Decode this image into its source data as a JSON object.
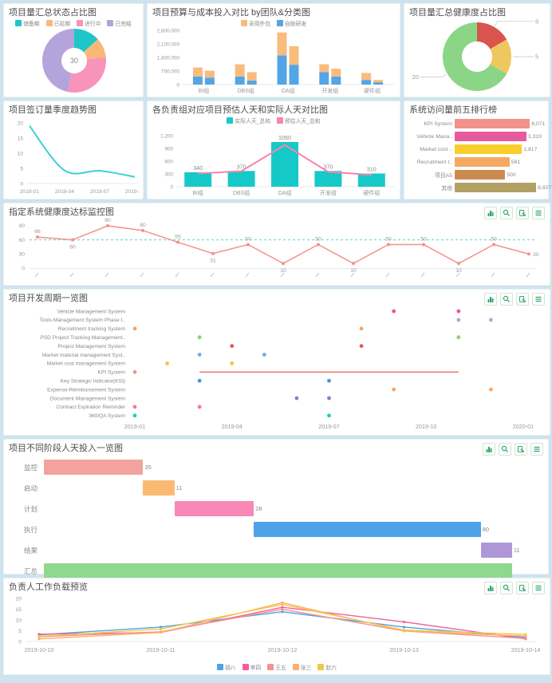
{
  "toolbar": {
    "icons": [
      "excel-export-icon",
      "zoom-icon",
      "download-icon",
      "menu-icon"
    ],
    "icon_color": "#34a46c"
  },
  "chart_data": [
    {
      "id": "status_donut",
      "type": "pie",
      "title": "项目量汇总状态占比图",
      "legend": [
        "储备期",
        "已延期",
        "进行中",
        "已完结"
      ],
      "colors": [
        "#1fc6c8",
        "#f9b877",
        "#f893ba",
        "#b5a4db"
      ],
      "values": [
        4,
        3,
        9,
        14
      ],
      "center_label": "30"
    },
    {
      "id": "budget_cost",
      "type": "bar",
      "title": "项目预算与成本投入对比 by团队&分类图",
      "legend": [
        {
          "label": "采用外包",
          "color": "#f9bc7d"
        },
        {
          "label": "自助研发",
          "color": "#54a5e5"
        }
      ],
      "categories": [
        "BI组",
        "DBS组",
        "OA组",
        "开发组",
        "硬件组"
      ],
      "yticks": [
        "0",
        "700,000",
        "1,400,000",
        "2,100,000",
        "2,800,000"
      ],
      "ymax": 2800000,
      "series": {
        "budget_self": [
          420000,
          420000,
          1510000,
          640000,
          240000
        ],
        "budget_outsource": [
          460000,
          630000,
          1180000,
          410000,
          360000
        ],
        "cost_self": [
          360000,
          205000,
          1025000,
          420000,
          120000
        ],
        "cost_outsource": [
          360000,
          435000,
          955000,
          400000,
          120000
        ]
      }
    },
    {
      "id": "health_donut",
      "type": "pie",
      "title": "项目量汇总健康度占比图",
      "labels": [
        "5",
        "5",
        "20"
      ],
      "values": [
        5,
        5,
        20
      ],
      "colors": [
        "#d8544c",
        "#eec75e",
        "#8bd586"
      ]
    },
    {
      "id": "sign_trend",
      "type": "line",
      "title": "项目签订量季度趋势图",
      "x": [
        "2019-01",
        "2019-04",
        "2019-07",
        "2019-10"
      ],
      "values": [
        19,
        4.3,
        4.2,
        2.2
      ],
      "yticks": [
        0,
        5,
        10,
        15,
        20
      ],
      "ylim": [
        0,
        20
      ],
      "color": "#3ed0d4"
    },
    {
      "id": "est_vs_actual",
      "type": "bar",
      "title": "各负责组对应项目预估人天和实际人天对比图",
      "legend": [
        {
          "label": "实际人天_总和",
          "color": "#16c9c9"
        },
        {
          "label": "预估人天_总和",
          "color": "#f785ae"
        }
      ],
      "categories": [
        "BI组",
        "DBS组",
        "OA组",
        "开发组",
        "硬件组"
      ],
      "bar_values": [
        340,
        370,
        1050,
        370,
        310
      ],
      "bar_labels": [
        "340",
        "370",
        "1050",
        "370",
        "310"
      ],
      "line_values": [
        310,
        365,
        980,
        350,
        280
      ],
      "yticks": [
        "0",
        "300",
        "600",
        "900",
        "1,200"
      ],
      "ymax": 1200
    },
    {
      "id": "visits_rank",
      "type": "bar",
      "title": "系统访问量前五排行榜",
      "items": [
        {
          "label": "KPI System",
          "value": "6,071",
          "color": "#f2928b",
          "length_pct": 85
        },
        {
          "label": "Vehicle Mana..",
          "value": "3,319",
          "color": "#e85a9e",
          "length_pct": 81
        },
        {
          "label": "Market cost ..",
          "value": "1,817",
          "color": "#f8cf2a",
          "length_pct": 76
        },
        {
          "label": "Recruitment t..",
          "value": "561",
          "color": "#f5a963",
          "length_pct": 62
        },
        {
          "label": "项目A5",
          "value": "500",
          "color": "#cd8a50",
          "length_pct": 57
        },
        {
          "label": "其他",
          "value": "8,927",
          "color": "#b2a165",
          "length_pct": 92
        }
      ]
    },
    {
      "id": "health_monitor",
      "type": "line",
      "title": "指定系统健康度达标监控图",
      "values": [
        66,
        60,
        90,
        80,
        55,
        31,
        50,
        10,
        50,
        10,
        50,
        50,
        10,
        50,
        30
      ],
      "label_positions": [
        "a",
        "b",
        "a",
        "a",
        "a",
        "b",
        "a",
        "b",
        "a",
        "b",
        "a",
        "a",
        "b",
        "a",
        "r"
      ],
      "threshold": 60,
      "yticks": [
        0,
        30,
        60,
        90
      ],
      "ylim": [
        0,
        95
      ],
      "color": "#f59089",
      "threshold_color": "#4fd8d2",
      "x_labels_rotated_illegible": true
    },
    {
      "id": "dev_cycle",
      "type": "scatter",
      "title": "项目开发周期一览图",
      "x_ticks": [
        "2019-01",
        "2019-04",
        "2019-07",
        "2019-10",
        "2020-01"
      ],
      "rows": [
        {
          "name": "Vehicle Management System",
          "color": "#e8559c",
          "points": [
            "2019-09",
            "2019-11"
          ]
        },
        {
          "name": "Tools Management System Phase I..",
          "color": "#a9a9e0",
          "points": [
            "2019-11",
            "2019-12"
          ]
        },
        {
          "name": "Recruitment tracking System",
          "color": "#f5a35c",
          "points": [
            "2019-01",
            "2019-08"
          ]
        },
        {
          "name": "PSD Project Tracking Management..",
          "color": "#8fd06a",
          "points": [
            "2019-03",
            "2019-11"
          ]
        },
        {
          "name": "Project Management System",
          "color": "#e25852",
          "points": [
            "2019-04",
            "2019-08"
          ]
        },
        {
          "name": "Market material management Syst..",
          "color": "#6baee8",
          "points": [
            "2019-03",
            "2019-05"
          ]
        },
        {
          "name": "Market cost management System",
          "color": "#f3c33c",
          "points": [
            "2019-02",
            "2019-04"
          ]
        },
        {
          "name": "KPI System",
          "color": "#f4908c",
          "points": [
            "2019-01"
          ],
          "line": [
            "2019-03",
            "2019-11"
          ],
          "line_color": "#ee7a74"
        },
        {
          "name": "Key Strategic Indicator(KSI)",
          "color": "#3f97e8",
          "points": [
            "2019-03",
            "2019-07"
          ]
        },
        {
          "name": "Expense Reimbursement System",
          "color": "#f9a55f",
          "points": [
            "2019-09",
            "2019-12"
          ]
        },
        {
          "name": "Document Management System",
          "color": "#9277cf",
          "points": [
            "2019-06",
            "2019-07"
          ]
        },
        {
          "name": "Contract Expiration Reminder",
          "color": "#f9729f",
          "points": [
            "2019-01",
            "2019-03"
          ]
        },
        {
          "name": "360/QA System",
          "color": "#18cfc4",
          "points": [
            "2019-01",
            "2019-07"
          ]
        }
      ]
    },
    {
      "id": "phase_days",
      "type": "bar",
      "title": "项目不同阶段人天投入一览图",
      "xmax": 176,
      "rows": [
        {
          "label": "监控",
          "start": 0,
          "value": 35,
          "show": "35",
          "color": "#f2a39e"
        },
        {
          "label": "启动",
          "start": 35,
          "value": 11,
          "show": "11",
          "color": "#fbba72"
        },
        {
          "label": "计划",
          "start": 46,
          "value": 28,
          "show": "28",
          "color": "#f888b6"
        },
        {
          "label": "执行",
          "start": 74,
          "value": 80,
          "show": "80",
          "color": "#4da2e8"
        },
        {
          "label": "结果",
          "start": 154,
          "value": 11,
          "show": "11",
          "color": "#af96d9"
        },
        {
          "label": "汇总",
          "start": 0,
          "value": 165,
          "show": "",
          "color": "#90d790"
        }
      ]
    },
    {
      "id": "workload",
      "type": "line",
      "title": "负责人工作负载预览",
      "x": [
        "2019-10-10",
        "2019-10-11",
        "2019-10-12",
        "2019-10-13",
        "2019-10-14"
      ],
      "yticks": [
        0,
        5,
        10,
        15,
        20
      ],
      "ylim": [
        0,
        20
      ],
      "series": [
        {
          "name": "胡八",
          "color": "#4da3e8",
          "values": [
            3.1,
            6.7,
            13.8,
            6.7,
            1.9
          ]
        },
        {
          "name": "李四",
          "color": "#f25fa0",
          "values": [
            3.4,
            4.2,
            15.9,
            9.1,
            1.2
          ]
        },
        {
          "name": "王五",
          "color": "#f4948e",
          "values": [
            2.2,
            4.5,
            15.0,
            4.9,
            1.4
          ]
        },
        {
          "name": "张三",
          "color": "#fbaf6e",
          "values": [
            1.2,
            4.2,
            18.0,
            4.9,
            2.5
          ]
        },
        {
          "name": "赵六",
          "color": "#f3c844",
          "values": [
            2.4,
            5.8,
            17.2,
            5.3,
            3.3
          ]
        }
      ]
    }
  ]
}
